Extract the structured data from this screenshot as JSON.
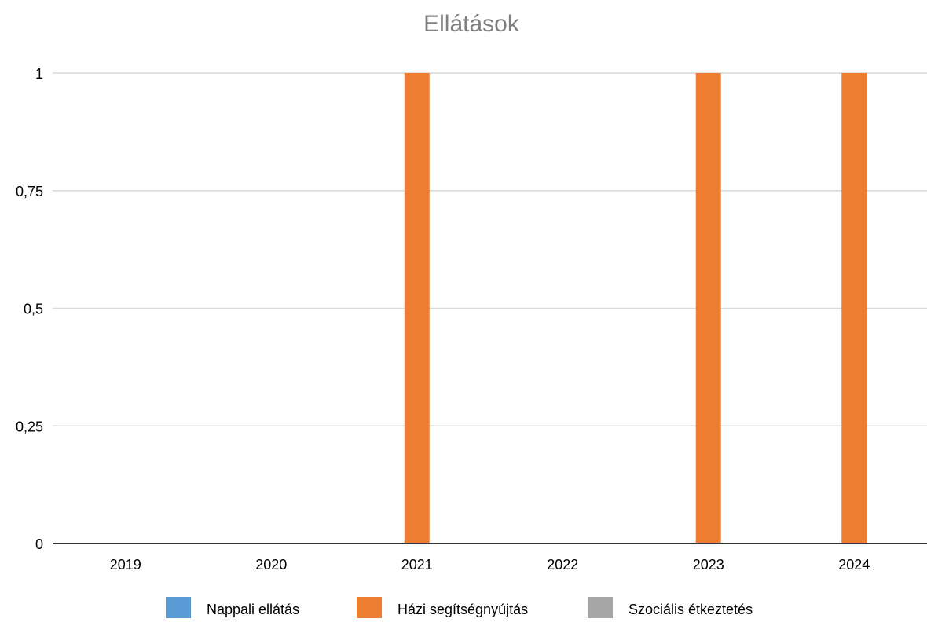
{
  "chart_data": {
    "type": "bar",
    "title": "Ellátások",
    "xlabel": "",
    "ylabel": "",
    "categories": [
      "2019",
      "2020",
      "2021",
      "2022",
      "2023",
      "2024"
    ],
    "series": [
      {
        "name": "Nappali ellátás",
        "color": "#5b9bd5",
        "values": [
          0,
          0,
          0,
          0,
          0,
          0
        ]
      },
      {
        "name": "Házi segítségnyújtás",
        "color": "#ed7d31",
        "values": [
          0,
          0,
          1,
          0,
          1,
          1
        ]
      },
      {
        "name": "Szociális étkeztetés",
        "color": "#a5a5a5",
        "values": [
          0,
          0,
          0,
          0,
          0,
          0
        ]
      }
    ],
    "ylim": [
      0,
      1
    ],
    "yticks": [
      0,
      0.25,
      0.5,
      0.75,
      1
    ],
    "ytick_labels": [
      "0",
      "0,25",
      "0,5",
      "0,75",
      "1"
    ],
    "grid": true,
    "legend_position": "bottom"
  }
}
